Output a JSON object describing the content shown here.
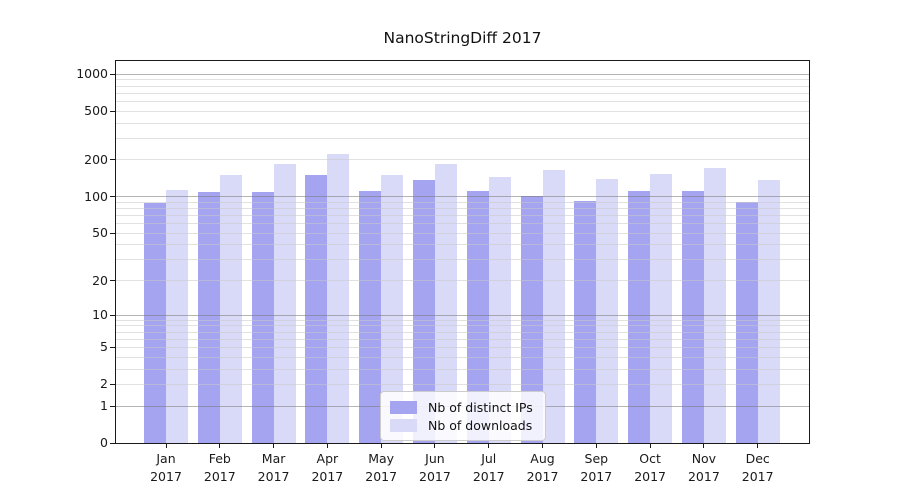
{
  "chart_data": {
    "type": "bar",
    "title": "NanoStringDiff 2017",
    "categories": [
      "Jan",
      "Feb",
      "Mar",
      "Apr",
      "May",
      "Jun",
      "Jul",
      "Aug",
      "Sep",
      "Oct",
      "Nov",
      "Dec"
    ],
    "year_label": "2017",
    "series": [
      {
        "name": "Nb of distinct IPs",
        "color": "#a4a4f0",
        "values": [
          88,
          110,
          110,
          151,
          111,
          137,
          112,
          101,
          92,
          111,
          111,
          91
        ]
      },
      {
        "name": "Nb of downloads",
        "color": "#d9d9f8",
        "values": [
          114,
          150,
          186,
          224,
          151,
          186,
          145,
          165,
          139,
          154,
          172,
          138
        ]
      }
    ],
    "xlabel": "",
    "ylabel": "",
    "yscale": "log1p",
    "ylim": [
      0,
      1283
    ],
    "yticks": [
      0,
      1,
      2,
      5,
      10,
      20,
      50,
      100,
      200,
      500,
      1000
    ],
    "grid_major": [
      1,
      10,
      100,
      1000
    ],
    "grid_minor": [
      2,
      3,
      4,
      5,
      6,
      7,
      8,
      9,
      20,
      30,
      40,
      50,
      60,
      70,
      80,
      90,
      200,
      300,
      400,
      500,
      600,
      700,
      800,
      900
    ],
    "grid": "on",
    "legend_position": "inside-bottom-center"
  }
}
